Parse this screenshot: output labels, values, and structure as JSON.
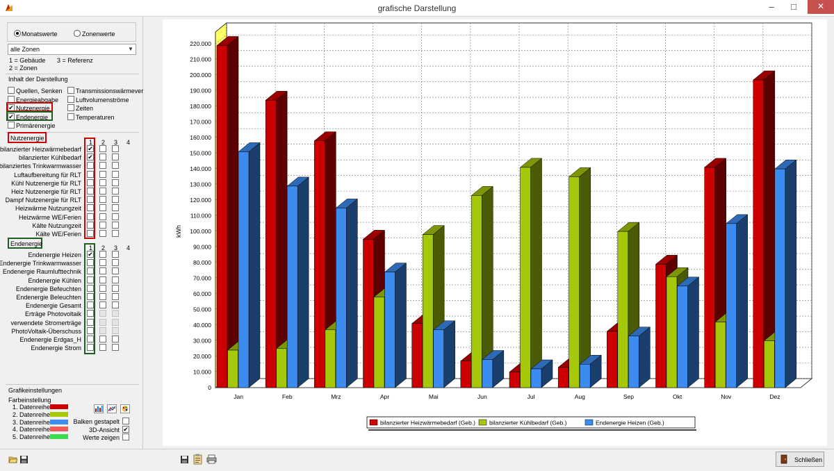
{
  "window": {
    "title": "grafische Darstellung"
  },
  "left": {
    "radio_monthly": "Monatswerte",
    "radio_zones": "Zonenwerte",
    "zone_select": "alle Zonen",
    "legend_codes": [
      "1 = Gebäude",
      "3 = Referenz",
      "2 = Zonen"
    ],
    "content_heading": "Inhalt der Darstellung",
    "content_left": [
      {
        "label": "Quellen, Senken",
        "checked": false
      },
      {
        "label": "Energieabgabe",
        "checked": false
      },
      {
        "label": "Nutzenergie",
        "checked": true
      },
      {
        "label": "Endenergie",
        "checked": true
      },
      {
        "label": "Primärenergie",
        "checked": false
      }
    ],
    "content_right": [
      {
        "label": "Transmissionswärmeverlust",
        "checked": false
      },
      {
        "label": "Luftvolumenströme",
        "checked": false
      },
      {
        "label": "Zeiten",
        "checked": false
      },
      {
        "label": "Temperaturen",
        "checked": false
      }
    ],
    "nutz_heading": "Nutzenergie",
    "col_headers": [
      "1",
      "2",
      "3",
      "4"
    ],
    "nutz_rows": [
      {
        "label": "bilanzierter Heizwärmebedarf",
        "checked": true
      },
      {
        "label": "bilanzierter Kühlbedarf",
        "checked": true
      },
      {
        "label": "bilanziertes Trinkwarmwasser",
        "checked": false
      },
      {
        "label": "Luftaufbereitung für RLT",
        "checked": false
      },
      {
        "label": "Kühl Nutzenergie für RLT",
        "checked": false
      },
      {
        "label": "Heiz Nutzenergie für RLT",
        "checked": false
      },
      {
        "label": "Dampf Nutzenergie für RLT",
        "checked": false
      },
      {
        "label": "Heizwärme Nutzungzeit",
        "checked": false
      },
      {
        "label": "Heizwärme WE/Ferien",
        "checked": false
      },
      {
        "label": "Kälte Nutzungzeit",
        "checked": false
      },
      {
        "label": "Kälte WE/Ferien",
        "checked": false
      }
    ],
    "end_heading": "Endenergie",
    "end_rows": [
      {
        "label": "Endenergie Heizen",
        "checked": true,
        "disabled": false
      },
      {
        "label": "Endenergie Trinkwarmwasser",
        "checked": false,
        "disabled": false
      },
      {
        "label": "Endenergie Raumlufttechnik",
        "checked": false,
        "disabled": false
      },
      {
        "label": "Endenergie Kühlen",
        "checked": false,
        "disabled": false
      },
      {
        "label": "Endenergie Befeuchten",
        "checked": false,
        "disabled": false
      },
      {
        "label": "Endenergie Beleuchten",
        "checked": false,
        "disabled": false
      },
      {
        "label": "Endenergie Gesamt",
        "checked": false,
        "disabled": false
      },
      {
        "label": "Erträge Photovoltaik",
        "checked": false,
        "disabled": true
      },
      {
        "label": "verwendete Stromerträge",
        "checked": false,
        "disabled": true
      },
      {
        "label": "PhotoVoltaik-Überschuss",
        "checked": false,
        "disabled": true
      },
      {
        "label": "Endenergie Erdgas_H",
        "checked": false,
        "disabled": false
      },
      {
        "label": "Endenergie Strom",
        "checked": false,
        "disabled": false
      }
    ],
    "graphics_heading": "Grafikeinstellungen",
    "color_heading": "Farbeinstellung",
    "series_colors": [
      {
        "label": "1. Datenreihe",
        "color": "#cc0000"
      },
      {
        "label": "2. Datenreihe",
        "color": "#a6c80a"
      },
      {
        "label": "3. Datenreihe",
        "color": "#3c8cf0"
      },
      {
        "label": "4. Datenreihe",
        "color": "#f05a5a"
      },
      {
        "label": "5. Datenreihe",
        "color": "#3cdc50"
      }
    ],
    "options": [
      {
        "label": "Balken gestapelt",
        "checked": false
      },
      {
        "label": "3D-Ansicht",
        "checked": true
      },
      {
        "label": "Werte zeigen",
        "checked": false
      }
    ]
  },
  "bottom": {
    "close_label": "Schließen"
  },
  "chart_data": {
    "type": "bar",
    "three_d": true,
    "ylabel": "kWh",
    "ylim": [
      0,
      225000
    ],
    "yticks": [
      "0",
      "10.000",
      "20.000",
      "30.000",
      "40.000",
      "50.000",
      "60.000",
      "70.000",
      "80.000",
      "90.000",
      "100.000",
      "110.000",
      "120.000",
      "130.000",
      "140.000",
      "150.000",
      "160.000",
      "170.000",
      "180.000",
      "190.000",
      "200.000",
      "210.000",
      "220.000"
    ],
    "categories": [
      "Jan",
      "Feb",
      "Mrz",
      "Apr",
      "Mai",
      "Jun",
      "Jul",
      "Aug",
      "Sep",
      "Okt",
      "Nov",
      "Dez"
    ],
    "grid": true,
    "legend_position": "bottom",
    "series": [
      {
        "name": "bilanzierter Heizwärmebedarf (Geb.)",
        "color": "#cc0000",
        "values": [
          219000,
          184000,
          158000,
          95000,
          41000,
          17000,
          10000,
          13000,
          36000,
          79000,
          141000,
          197000
        ]
      },
      {
        "name": "bilanzierter Kühlbedarf (Geb.)",
        "color": "#a6c80a",
        "values": [
          24000,
          25000,
          37000,
          58000,
          98000,
          123000,
          141000,
          135000,
          100000,
          71000,
          42000,
          30000
        ]
      },
      {
        "name": "Endenergie Heizen (Geb.)",
        "color": "#3c8cf0",
        "values": [
          151000,
          129000,
          115000,
          74000,
          37000,
          18000,
          12000,
          15000,
          33000,
          65000,
          105000,
          140000
        ]
      }
    ]
  }
}
